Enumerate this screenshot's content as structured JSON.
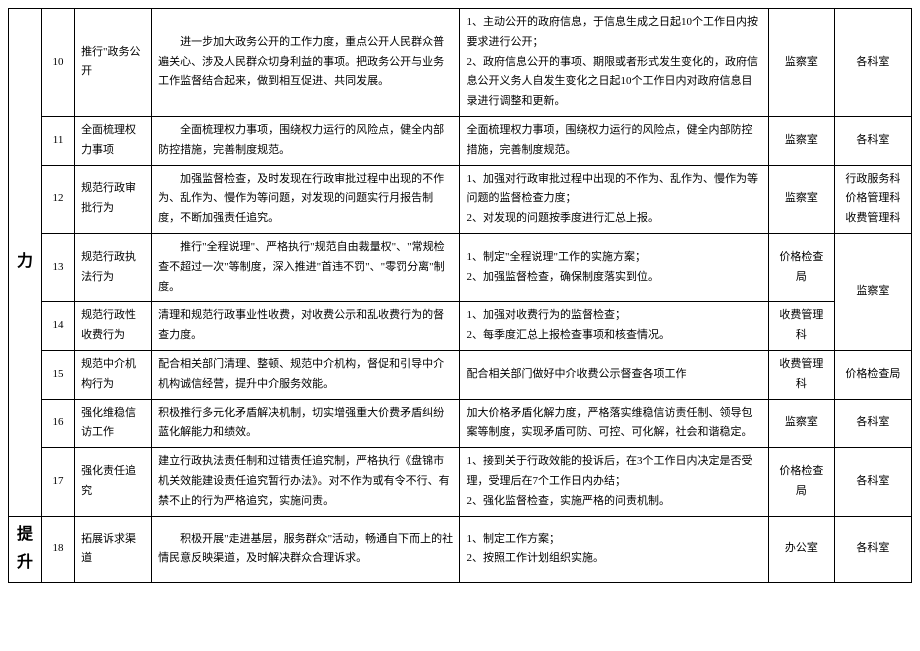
{
  "categories": {
    "cat1": "力",
    "cat2": "提升"
  },
  "rows": [
    {
      "num": "10",
      "item": "推行\"政务公开",
      "desc": "进一步加大政务公开的工作力度，重点公开人民群众普遍关心、涉及人民群众切身利益的事项。把政务公开与业务工作监督结合起来，做到相互促进、共同发展。",
      "outcome": "1、主动公开的政府信息，于信息生成之日起10个工作日内按要求进行公开；\n2、政府信息公开的事项、期限或者形式发生变化的，政府信息公开义务人自发生变化之日起10个工作日内对政府信息目录进行调整和更新。",
      "resp": "监察室",
      "coop": "各科室"
    },
    {
      "num": "11",
      "item": "全面梳理权力事项",
      "desc": "全面梳理权力事项，围绕权力运行的风险点，健全内部防控措施，完善制度规范。",
      "outcome": "全面梳理权力事项，围绕权力运行的风险点，健全内部防控措施，完善制度规范。",
      "resp": "监察室",
      "coop": "各科室"
    },
    {
      "num": "12",
      "item": "规范行政审批行为",
      "desc": "加强监督检查，及时发现在行政审批过程中出现的不作为、乱作为、慢作为等问题，对发现的问题实行月报告制度，不断加强责任追究。",
      "outcome": "1、加强对行政审批过程中出现的不作为、乱作为、慢作为等问题的监督检查力度；\n2、对发现的问题按季度进行汇总上报。",
      "resp": "监察室",
      "coop": "行政服务科\n价格管理科\n收费管理科"
    },
    {
      "num": "13",
      "item": "规范行政执法行为",
      "desc": "推行\"全程说理\"、严格执行\"规范自由裁量权\"、\"常规检查不超过一次\"等制度，深入推进\"首违不罚\"、\"零罚分离\"制度。",
      "outcome": "1、制定\"全程说理\"工作的实施方案；\n2、加强监督检查，确保制度落实到位。",
      "resp": "价格检查局",
      "coop": "监察室"
    },
    {
      "num": "14",
      "item": "规范行政性收费行为",
      "desc": "清理和规范行政事业性收费，对收费公示和乱收费行为的督查力度。",
      "outcome": "1、加强对收费行为的监督检查；\n2、每季度汇总上报检查事项和核查情况。",
      "resp": "收费管理科",
      "coop": "监察室"
    },
    {
      "num": "15",
      "item": "规范中介机构行为",
      "desc": "配合相关部门清理、整顿、规范中介机构，督促和引导中介机构诚信经营，提升中介服务效能。",
      "outcome": "配合相关部门做好中介收费公示督查各项工作",
      "resp": "收费管理科",
      "coop": "价格检查局"
    },
    {
      "num": "16",
      "item": "强化维稳信访工作",
      "desc": "积极推行多元化矛盾解决机制，切实增强重大价费矛盾纠纷蓝化解能力和绩效。",
      "outcome": "加大价格矛盾化解力度，严格落实维稳信访责任制、领导包案等制度，实现矛盾可防、可控、可化解，社会和谐稳定。",
      "resp": "监察室",
      "coop": "各科室"
    },
    {
      "num": "17",
      "item": "强化责任追究",
      "desc": "建立行政执法责任制和过错责任追究制，严格执行《盘锦市机关效能建设责任追究暂行办法》。对不作为或有令不行、有禁不止的行为严格追究，实施问责。",
      "outcome": "1、接到关于行政效能的投诉后，在3个工作日内决定是否受理，受理后在7个工作日内办结；\n2、强化监督检查，实施严格的问责机制。",
      "resp": "价格检查局",
      "coop": "各科室"
    },
    {
      "num": "18",
      "item": "拓展诉求渠道",
      "desc": "积极开展\"走进基层，服务群众\"活动，畅通自下而上的社情民意反映渠道，及时解决群众合理诉求。",
      "outcome": "1、制定工作方案；\n2、按照工作计划组织实施。",
      "resp": "办公室",
      "coop": "各科室"
    }
  ]
}
